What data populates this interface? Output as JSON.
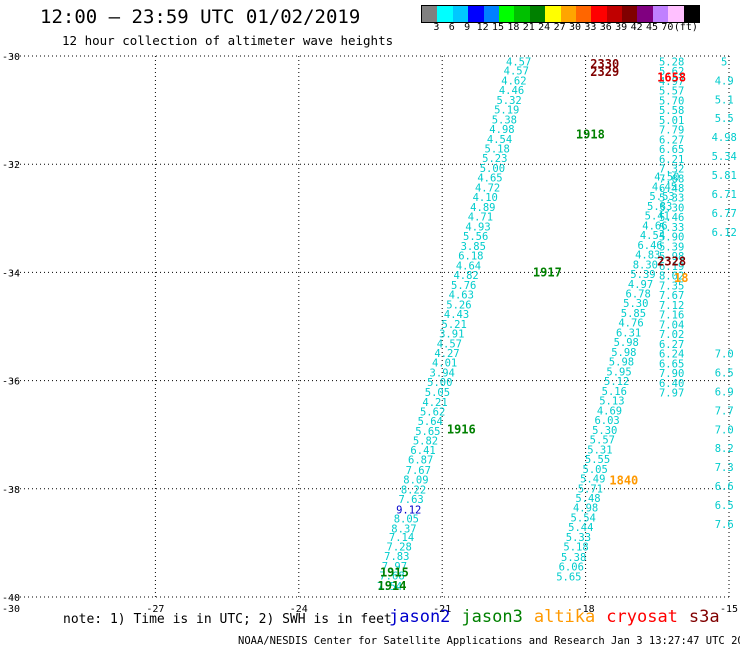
{
  "header": {
    "title": "12:00 – 23:59 UTC 01/02/2019",
    "subtitle": "12 hour collection of altimeter wave heights"
  },
  "scale": {
    "unit": "(ft)",
    "colors": [
      "#808080",
      "#00ffff",
      "#00c8ff",
      "#0000ff",
      "#0080ff",
      "#00ff00",
      "#00c000",
      "#008000",
      "#ffff00",
      "#ffa500",
      "#ff6600",
      "#ff0000",
      "#c00000",
      "#800000",
      "#800080",
      "#c080ff",
      "#ffc0ff",
      "#000000"
    ],
    "labels": [
      "3",
      "6",
      "9",
      "12",
      "15",
      "18",
      "21",
      "24",
      "27",
      "30",
      "33",
      "36",
      "39",
      "42",
      "45",
      "70"
    ]
  },
  "note": "note: 1) Time is in UTC; 2) SWH is in feet",
  "legend": [
    {
      "name": "jason2",
      "color": "#0000cc"
    },
    {
      "name": "jason3",
      "color": "#008000"
    },
    {
      "name": "altika",
      "color": "#ff9900"
    },
    {
      "name": "cryosat",
      "color": "#ff0000"
    },
    {
      "name": "s3a",
      "color": "#800000"
    }
  ],
  "credit": "NOAA/NESDIS Center for Satellite Applications and Research   Jan  3 13:27:47 UTC 2019",
  "chart_data": {
    "type": "scatter",
    "title": "12:00 – 23:59 UTC 01/02/2019",
    "xlim": [
      -30,
      -15
    ],
    "ylim": [
      -40,
      -30
    ],
    "x_ticks": [
      -27,
      -24,
      -21,
      -18,
      -15
    ],
    "y_ticks": [
      -30,
      -32,
      -34,
      -36,
      -38,
      -40
    ],
    "corner_label": "-30",
    "grid": true,
    "series": [
      {
        "name": "jason3",
        "color": "#00cccc",
        "points": [
          {
            "x": -22.1,
            "y": -39.8,
            "v": "7.54"
          },
          {
            "x": -22.05,
            "y": -39.6,
            "v": "7.68"
          },
          {
            "x": -22.0,
            "y": -39.43,
            "v": "7.97"
          },
          {
            "x": -21.95,
            "y": -39.24,
            "v": "7.83"
          },
          {
            "x": -21.9,
            "y": -39.07,
            "v": "7.28"
          },
          {
            "x": -21.85,
            "y": -38.89,
            "v": "7.14"
          },
          {
            "x": -21.8,
            "y": -38.73,
            "v": "8.37"
          },
          {
            "x": -21.75,
            "y": -38.55,
            "v": "8.05"
          },
          {
            "x": -21.7,
            "y": -38.38,
            "v": "9.12",
            "c": "#0000cc"
          },
          {
            "x": -21.65,
            "y": -38.19,
            "v": "7.63"
          },
          {
            "x": -21.6,
            "y": -38.01,
            "v": "8.22"
          },
          {
            "x": -21.55,
            "y": -37.83,
            "v": "8.09"
          },
          {
            "x": -21.5,
            "y": -37.65,
            "v": "7.67"
          },
          {
            "x": -21.45,
            "y": -37.46,
            "v": "6.87"
          },
          {
            "x": -21.4,
            "y": -37.28,
            "v": "6.41"
          },
          {
            "x": -21.35,
            "y": -37.11,
            "v": "5.82"
          },
          {
            "x": -21.3,
            "y": -36.93,
            "v": "5.65"
          },
          {
            "x": -21.25,
            "y": -36.75,
            "v": "5.64"
          },
          {
            "x": -21.2,
            "y": -36.57,
            "v": "5.62"
          },
          {
            "x": -21.15,
            "y": -36.4,
            "v": "4.21"
          },
          {
            "x": -21.1,
            "y": -36.21,
            "v": "5.05"
          },
          {
            "x": -21.05,
            "y": -36.03,
            "v": "5.00"
          },
          {
            "x": -21.0,
            "y": -35.85,
            "v": "3.94"
          },
          {
            "x": -20.95,
            "y": -35.67,
            "v": "4.01"
          },
          {
            "x": -20.9,
            "y": -35.49,
            "v": "4.27"
          },
          {
            "x": -20.85,
            "y": -35.31,
            "v": "4.57"
          },
          {
            "x": -20.8,
            "y": -35.13,
            "v": "3.91"
          },
          {
            "x": -20.75,
            "y": -34.95,
            "v": "5.21"
          },
          {
            "x": -20.7,
            "y": -34.77,
            "v": "4.43"
          },
          {
            "x": -20.65,
            "y": -34.59,
            "v": "5.26"
          },
          {
            "x": -20.6,
            "y": -34.41,
            "v": "4.63"
          },
          {
            "x": -20.55,
            "y": -34.23,
            "v": "5.76"
          },
          {
            "x": -20.5,
            "y": -34.05,
            "v": "4.82"
          },
          {
            "x": -20.45,
            "y": -33.87,
            "v": "4.64"
          },
          {
            "x": -20.4,
            "y": -33.69,
            "v": "6.18"
          },
          {
            "x": -20.35,
            "y": -33.51,
            "v": "3.85"
          },
          {
            "x": -20.3,
            "y": -33.33,
            "v": "5.56"
          },
          {
            "x": -20.25,
            "y": -33.15,
            "v": "4.93"
          },
          {
            "x": -20.2,
            "y": -32.97,
            "v": "4.71"
          },
          {
            "x": -20.15,
            "y": -32.79,
            "v": "4.89"
          },
          {
            "x": -20.1,
            "y": -32.61,
            "v": "4.10"
          },
          {
            "x": -20.05,
            "y": -32.43,
            "v": "4.72"
          },
          {
            "x": -20.0,
            "y": -32.25,
            "v": "4.65"
          },
          {
            "x": -19.95,
            "y": -32.07,
            "v": "5.00"
          },
          {
            "x": -19.9,
            "y": -31.89,
            "v": "5.23"
          },
          {
            "x": -19.85,
            "y": -31.71,
            "v": "5.18"
          },
          {
            "x": -19.8,
            "y": -31.53,
            "v": "4.54"
          },
          {
            "x": -19.75,
            "y": -31.35,
            "v": "4.98"
          },
          {
            "x": -19.7,
            "y": -31.17,
            "v": "5.38"
          },
          {
            "x": -19.65,
            "y": -30.99,
            "v": "5.19"
          },
          {
            "x": -19.6,
            "y": -30.81,
            "v": "5.32"
          },
          {
            "x": -19.55,
            "y": -30.63,
            "v": "4.46"
          },
          {
            "x": -19.5,
            "y": -30.45,
            "v": "4.62"
          },
          {
            "x": -19.45,
            "y": -30.27,
            "v": "4.57"
          },
          {
            "x": -19.4,
            "y": -30.1,
            "v": "4.57"
          }
        ]
      },
      {
        "name": "jason2",
        "color": "#00cccc",
        "points": [
          {
            "x": -18.35,
            "y": -39.62,
            "v": "5.65"
          },
          {
            "x": -18.3,
            "y": -39.44,
            "v": "6.06"
          },
          {
            "x": -18.25,
            "y": -39.26,
            "v": "5.38"
          },
          {
            "x": -18.2,
            "y": -39.07,
            "v": "5.18"
          },
          {
            "x": -18.15,
            "y": -38.89,
            "v": "5.33"
          },
          {
            "x": -18.1,
            "y": -38.71,
            "v": "5.44"
          },
          {
            "x": -18.05,
            "y": -38.53,
            "v": "5.54"
          },
          {
            "x": -18.0,
            "y": -38.35,
            "v": "4.98"
          },
          {
            "x": -17.95,
            "y": -38.17,
            "v": "5.48"
          },
          {
            "x": -17.9,
            "y": -37.99,
            "v": "5.71"
          },
          {
            "x": -17.85,
            "y": -37.81,
            "v": "5.49"
          },
          {
            "x": -17.8,
            "y": -37.63,
            "v": "5.05"
          },
          {
            "x": -17.75,
            "y": -37.45,
            "v": "5.55"
          },
          {
            "x": -17.7,
            "y": -37.27,
            "v": "5.31"
          },
          {
            "x": -17.65,
            "y": -37.09,
            "v": "5.57"
          },
          {
            "x": -17.6,
            "y": -36.91,
            "v": "5.30"
          },
          {
            "x": -17.55,
            "y": -36.73,
            "v": "6.03"
          },
          {
            "x": -17.5,
            "y": -36.55,
            "v": "4.69"
          },
          {
            "x": -17.45,
            "y": -36.37,
            "v": "5.13"
          },
          {
            "x": -17.4,
            "y": -36.19,
            "v": "5.16"
          },
          {
            "x": -17.35,
            "y": -36.01,
            "v": "5.12"
          },
          {
            "x": -17.3,
            "y": -35.83,
            "v": "5.95"
          },
          {
            "x": -17.25,
            "y": -35.65,
            "v": "5.98"
          },
          {
            "x": -17.2,
            "y": -35.47,
            "v": "5.98"
          },
          {
            "x": -17.15,
            "y": -35.29,
            "v": "5.98"
          },
          {
            "x": -17.1,
            "y": -35.11,
            "v": "6.31"
          },
          {
            "x": -17.05,
            "y": -34.93,
            "v": "4.76"
          },
          {
            "x": -17.0,
            "y": -34.75,
            "v": "5.85"
          },
          {
            "x": -16.95,
            "y": -34.57,
            "v": "5.30"
          },
          {
            "x": -16.9,
            "y": -34.39,
            "v": "6.78"
          },
          {
            "x": -16.85,
            "y": -34.21,
            "v": "4.97"
          },
          {
            "x": -16.8,
            "y": -34.03,
            "v": "5.39"
          },
          {
            "x": -16.75,
            "y": -33.85,
            "v": "8.30"
          },
          {
            "x": -16.7,
            "y": -33.67,
            "v": "4.83"
          },
          {
            "x": -16.65,
            "y": -33.49,
            "v": "6.46"
          },
          {
            "x": -16.6,
            "y": -33.31,
            "v": "4.54"
          },
          {
            "x": -16.55,
            "y": -33.13,
            "v": "4.66"
          },
          {
            "x": -16.5,
            "y": -32.95,
            "v": "5.41"
          },
          {
            "x": -16.45,
            "y": -32.77,
            "v": "5.83"
          },
          {
            "x": -16.4,
            "y": -32.59,
            "v": "5.53"
          },
          {
            "x": -16.35,
            "y": -32.41,
            "v": "4.45"
          },
          {
            "x": -16.3,
            "y": -32.23,
            "v": "4.50"
          }
        ]
      },
      {
        "name": "pass-2",
        "color": "#00cccc",
        "points": [
          {
            "x": -16.2,
            "y": -30.1,
            "v": "5.28"
          },
          {
            "x": -16.2,
            "y": -30.28,
            "v": "5.62"
          },
          {
            "x": -16.2,
            "y": -30.46,
            "v": "4.97"
          },
          {
            "x": -16.2,
            "y": -30.64,
            "v": "5.57"
          },
          {
            "x": -16.2,
            "y": -30.82,
            "v": "5.70"
          },
          {
            "x": -16.2,
            "y": -31.0,
            "v": "5.58"
          },
          {
            "x": -16.2,
            "y": -31.18,
            "v": "5.01"
          },
          {
            "x": -16.2,
            "y": -31.36,
            "v": "7.79"
          },
          {
            "x": -16.2,
            "y": -31.54,
            "v": "6.27"
          },
          {
            "x": -16.2,
            "y": -31.72,
            "v": "6.65"
          },
          {
            "x": -16.2,
            "y": -31.9,
            "v": "6.21"
          },
          {
            "x": -16.2,
            "y": -32.08,
            "v": "7.32"
          },
          {
            "x": -16.2,
            "y": -32.26,
            "v": "7.68"
          },
          {
            "x": -16.2,
            "y": -32.44,
            "v": "6.48"
          },
          {
            "x": -16.2,
            "y": -32.62,
            "v": "5.33"
          },
          {
            "x": -16.2,
            "y": -32.8,
            "v": "5.30"
          },
          {
            "x": -16.2,
            "y": -32.98,
            "v": "5.46"
          },
          {
            "x": -16.2,
            "y": -33.16,
            "v": "5.33"
          },
          {
            "x": -16.2,
            "y": -33.34,
            "v": "5.90"
          },
          {
            "x": -16.2,
            "y": -33.52,
            "v": "5.39"
          },
          {
            "x": -16.2,
            "y": -33.7,
            "v": "5.98"
          },
          {
            "x": -16.2,
            "y": -33.88,
            "v": "6.19"
          },
          {
            "x": -16.2,
            "y": -34.06,
            "v": "8.02"
          },
          {
            "x": -16.2,
            "y": -34.24,
            "v": "7.35"
          },
          {
            "x": -16.2,
            "y": -34.42,
            "v": "7.67"
          },
          {
            "x": -16.2,
            "y": -34.6,
            "v": "7.12"
          },
          {
            "x": -16.2,
            "y": -34.78,
            "v": "7.16"
          },
          {
            "x": -16.2,
            "y": -34.96,
            "v": "7.04"
          },
          {
            "x": -16.2,
            "y": -35.14,
            "v": "7.02"
          },
          {
            "x": -16.2,
            "y": -35.32,
            "v": "6.27"
          },
          {
            "x": -16.2,
            "y": -35.5,
            "v": "6.24"
          },
          {
            "x": -16.2,
            "y": -35.68,
            "v": "6.65"
          },
          {
            "x": -16.2,
            "y": -35.86,
            "v": "7.90"
          },
          {
            "x": -16.2,
            "y": -36.04,
            "v": "6.40"
          },
          {
            "x": -16.2,
            "y": -36.22,
            "v": "7.97"
          }
        ]
      },
      {
        "name": "pass-3",
        "color": "#00cccc",
        "points": [
          {
            "x": -15.1,
            "y": -30.1,
            "v": "5"
          },
          {
            "x": -15.1,
            "y": -30.45,
            "v": "4.9"
          },
          {
            "x": -15.1,
            "y": -30.8,
            "v": "5.1"
          },
          {
            "x": -15.1,
            "y": -31.15,
            "v": "5.5"
          },
          {
            "x": -15.1,
            "y": -31.5,
            "v": "4.98"
          },
          {
            "x": -15.1,
            "y": -31.85,
            "v": "5.34"
          },
          {
            "x": -15.1,
            "y": -32.2,
            "v": "5.81"
          },
          {
            "x": -15.1,
            "y": -32.55,
            "v": "6.71"
          },
          {
            "x": -15.1,
            "y": -32.9,
            "v": "6.77"
          },
          {
            "x": -15.1,
            "y": -33.25,
            "v": "6.12"
          },
          {
            "x": -15.1,
            "y": -35.5,
            "v": "7.0"
          },
          {
            "x": -15.1,
            "y": -35.85,
            "v": "6.5"
          },
          {
            "x": -15.1,
            "y": -36.2,
            "v": "6.9"
          },
          {
            "x": -15.1,
            "y": -36.55,
            "v": "7.7"
          },
          {
            "x": -15.1,
            "y": -36.9,
            "v": "7.0"
          },
          {
            "x": -15.1,
            "y": -37.25,
            "v": "8.2"
          },
          {
            "x": -15.1,
            "y": -37.6,
            "v": "7.3"
          },
          {
            "x": -15.1,
            "y": -37.95,
            "v": "6.6"
          },
          {
            "x": -15.1,
            "y": -38.3,
            "v": "6.5"
          },
          {
            "x": -15.1,
            "y": -38.65,
            "v": "7.6"
          }
        ]
      }
    ],
    "time_labels": [
      {
        "x": -22.05,
        "y": -39.8,
        "t": "1914",
        "color": "#008000"
      },
      {
        "x": -22.0,
        "y": -39.55,
        "t": "1915",
        "color": "#008000"
      },
      {
        "x": -20.6,
        "y": -36.9,
        "t": "1916",
        "color": "#008000"
      },
      {
        "x": -18.8,
        "y": -34.0,
        "t": "1917",
        "color": "#008000"
      },
      {
        "x": -17.9,
        "y": -31.45,
        "t": "1918",
        "color": "#008000"
      },
      {
        "x": -17.6,
        "y": -30.15,
        "t": "2330",
        "color": "#800000"
      },
      {
        "x": -17.6,
        "y": -30.3,
        "t": "2329",
        "color": "#800000"
      },
      {
        "x": -16.2,
        "y": -33.8,
        "t": "2328",
        "color": "#800000"
      },
      {
        "x": -16.2,
        "y": -30.4,
        "t": "1658",
        "color": "#ff0000"
      },
      {
        "x": -17.2,
        "y": -37.85,
        "t": "1840",
        "color": "#ff9900"
      },
      {
        "x": -16.0,
        "y": -34.1,
        "t": "18",
        "color": "#ff9900"
      }
    ]
  }
}
